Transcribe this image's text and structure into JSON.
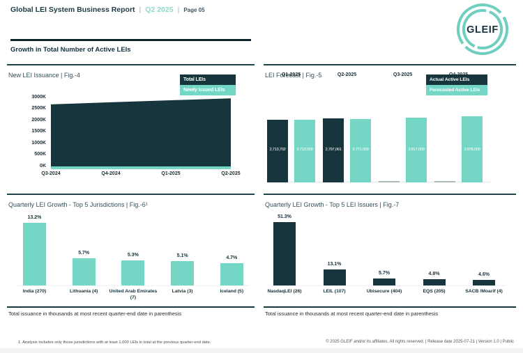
{
  "header": {
    "title": "Global LEI System Business Report",
    "separator": "|",
    "period": "Q2 2025",
    "page": "Page 05"
  },
  "logo": {
    "text": "GLEIF"
  },
  "section_title": "Growth in Total Number of Active LEIs",
  "colors": {
    "dark": "#16353c",
    "teal": "#74d7c5",
    "logo_teal": "#6fcfbf",
    "navy_text": "#14323b",
    "placeholder_gray": "#a9b6ba"
  },
  "chart_data": [
    {
      "id": "fig4",
      "type": "area",
      "title": "New LEI Issuance | Fig.-4",
      "categories": [
        "Q3-2024",
        "Q4-2024",
        "Q1-2025",
        "Q2-2025"
      ],
      "series": [
        {
          "name": "Total LEIs",
          "color": "#16353c",
          "values_thousands": [
            2700,
            2790,
            2880,
            2960
          ]
        },
        {
          "name": "Newly Issued LEIs",
          "color": "#74d7c5",
          "values_thousands": [
            60,
            60,
            60,
            60
          ]
        }
      ],
      "ylim_thousands": [
        0,
        3000
      ],
      "y_ticks": [
        "0K",
        "500K",
        "1000K",
        "1500K",
        "2000K",
        "2500K",
        "3000K"
      ],
      "legend_position": "top-right",
      "grid": false
    },
    {
      "id": "fig5",
      "type": "bar",
      "title": "LEI Forecast | Fig.-5",
      "categories": [
        "Q1-2025",
        "Q2-2025",
        "Q3-2025",
        "Q4-2025"
      ],
      "series": [
        {
          "name": "Actual Active LEIs",
          "color": "#16353c",
          "values": [
            2713702,
            2797061,
            null,
            null
          ],
          "labels": [
            "2,713,702",
            "2,797,061",
            "",
            ""
          ]
        },
        {
          "name": "Forecasted Active LEIs",
          "color": "#74d7c5",
          "values": [
            2713000,
            2771000,
            2817000,
            2878000
          ],
          "labels": [
            "2,713,000",
            "2,771,000",
            "2,817,000",
            "2,878,000"
          ]
        }
      ],
      "category_labels_position": "above-bars",
      "data_labels": "inside-white",
      "legend_position": "top-right",
      "grid": false
    },
    {
      "id": "fig6",
      "type": "bar",
      "title": "Quarterly LEI Growth - Top 5 Jurisdictions | Fig.-6¹",
      "categories": [
        "India (270)",
        "Lithuania (4)",
        "United Arab Emirates (7)",
        "Latvia (3)",
        "Iceland (5)"
      ],
      "values": [
        13.2,
        5.7,
        5.3,
        5.1,
        4.7
      ],
      "value_labels": [
        "13.2%",
        "5.7%",
        "5.3%",
        "5.1%",
        "4.7%"
      ],
      "bar_color": "#74d7c5",
      "footnote": "Total issuance in thousands at most recent quarter-end date in parenthesis",
      "grid": false
    },
    {
      "id": "fig7",
      "type": "bar",
      "title": "Quarterly LEI Growth - Top 5 LEI Issuers | Fig.-7",
      "categories": [
        "NasdaqLEI (26)",
        "LEIL (107)",
        "Ubisecure (404)",
        "EQS (205)",
        "SACB /Moarif (4)"
      ],
      "values": [
        51.3,
        13.1,
        5.7,
        4.8,
        4.6
      ],
      "value_labels": [
        "51.3%",
        "13.1%",
        "5.7%",
        "4.8%",
        "4.6%"
      ],
      "bar_color": "#16353c",
      "footnote": "Total issuance in thousands at most recent quarter-end date in parenthesis",
      "grid": false
    }
  ],
  "footer": {
    "note": "1. Analysis includes only those jurisdictions with at least 1,000 LEIs in total at the previous quarter-end date.",
    "copyright": "© 2025 GLEIF and/or its affiliates. All rights reserved. | Release date 2025-07-21 | Version 1.0 | Public"
  }
}
